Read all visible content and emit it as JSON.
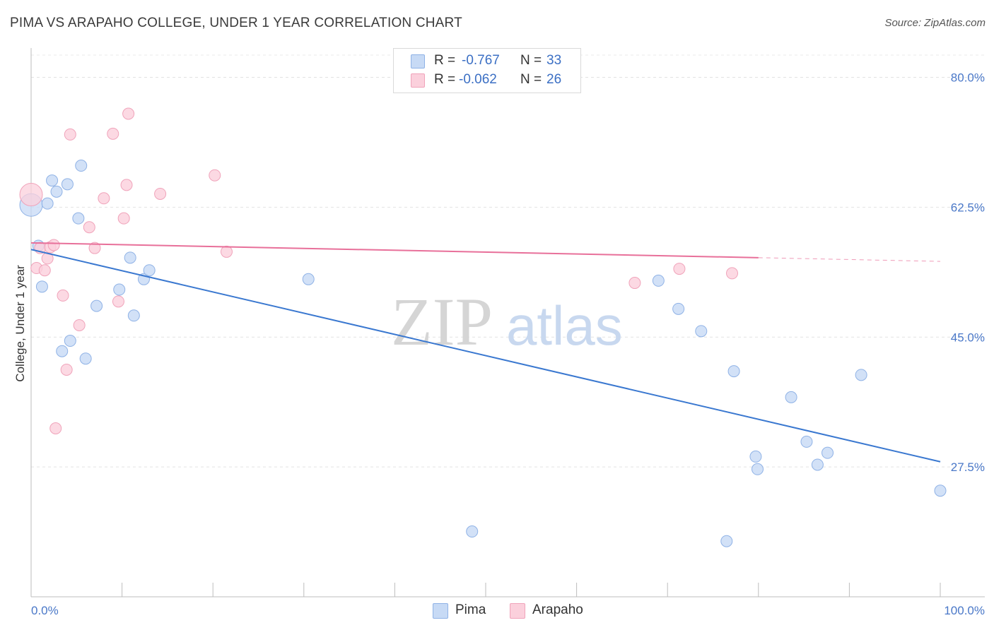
{
  "header": {
    "title": "PIMA VS ARAPAHO COLLEGE, UNDER 1 YEAR CORRELATION CHART",
    "source": "Source: ZipAtlas.com"
  },
  "legend": {
    "pima": {
      "r_label": "R =",
      "r_value": "-0.767",
      "n_label": "N =",
      "n_value": "33"
    },
    "arapaho": {
      "r_label": "R =",
      "r_value": "-0.062",
      "n_label": "N =",
      "n_value": "26"
    }
  },
  "bottom_legend": {
    "pima": "Pima",
    "arapaho": "Arapaho"
  },
  "watermark": {
    "zip": "ZIP",
    "atlas": "atlas"
  },
  "colors": {
    "pima_fill": "#c7daf5",
    "pima_stroke": "#8fb2e6",
    "pima_line": "#3a78d0",
    "arapaho_fill": "#fbd0dc",
    "arapaho_stroke": "#f0a3ba",
    "arapaho_line": "#e8709a",
    "axis_text": "#4a78c8"
  },
  "chart_data": {
    "type": "scatter",
    "title": "PIMA VS ARAPAHO COLLEGE, UNDER 1 YEAR CORRELATION CHART",
    "xlabel": "",
    "ylabel": "College, Under 1 year",
    "xlim": [
      0,
      100
    ],
    "ylim": [
      10,
      83
    ],
    "x_tick_labels": [
      "0.0%",
      "100.0%"
    ],
    "y_ticks": [
      27.5,
      45.0,
      62.5,
      80.0
    ],
    "y_tick_labels": [
      "27.5%",
      "45.0%",
      "62.5%",
      "80.0%"
    ],
    "grid": true,
    "series": [
      {
        "name": "Pima",
        "r": -0.767,
        "n": 33,
        "points": [
          {
            "x": 0.0,
            "y": 62.8,
            "big": true
          },
          {
            "x": 0.8,
            "y": 57.3
          },
          {
            "x": 1.2,
            "y": 51.8
          },
          {
            "x": 1.8,
            "y": 63.0
          },
          {
            "x": 2.3,
            "y": 66.1
          },
          {
            "x": 2.8,
            "y": 64.6
          },
          {
            "x": 3.4,
            "y": 43.1
          },
          {
            "x": 4.0,
            "y": 65.6
          },
          {
            "x": 4.3,
            "y": 44.5
          },
          {
            "x": 5.2,
            "y": 61.0
          },
          {
            "x": 5.5,
            "y": 68.1
          },
          {
            "x": 6.0,
            "y": 42.1
          },
          {
            "x": 7.2,
            "y": 49.2
          },
          {
            "x": 9.7,
            "y": 51.4
          },
          {
            "x": 10.9,
            "y": 55.7
          },
          {
            "x": 11.3,
            "y": 47.9
          },
          {
            "x": 12.4,
            "y": 52.8
          },
          {
            "x": 13.0,
            "y": 54.0
          },
          {
            "x": 30.5,
            "y": 52.8
          },
          {
            "x": 48.5,
            "y": 18.8
          },
          {
            "x": 69.0,
            "y": 52.6
          },
          {
            "x": 71.2,
            "y": 48.8
          },
          {
            "x": 73.7,
            "y": 45.8
          },
          {
            "x": 76.5,
            "y": 17.5
          },
          {
            "x": 77.3,
            "y": 40.4
          },
          {
            "x": 79.7,
            "y": 28.9
          },
          {
            "x": 79.9,
            "y": 27.2
          },
          {
            "x": 83.6,
            "y": 36.9
          },
          {
            "x": 85.3,
            "y": 30.9
          },
          {
            "x": 86.5,
            "y": 27.8
          },
          {
            "x": 87.6,
            "y": 29.4
          },
          {
            "x": 91.3,
            "y": 39.9
          },
          {
            "x": 100.0,
            "y": 24.3
          }
        ],
        "trend": {
          "x0": 0.0,
          "y0": 56.8,
          "x1": 100.0,
          "y1": 28.2,
          "dashed_from": null
        }
      },
      {
        "name": "Arapaho",
        "r": -0.062,
        "n": 26,
        "points": [
          {
            "x": 0.0,
            "y": 64.2,
            "big": true
          },
          {
            "x": 0.6,
            "y": 54.3
          },
          {
            "x": 1.0,
            "y": 57.0
          },
          {
            "x": 1.5,
            "y": 54.0
          },
          {
            "x": 1.8,
            "y": 55.6
          },
          {
            "x": 2.1,
            "y": 57.1
          },
          {
            "x": 2.5,
            "y": 57.4
          },
          {
            "x": 2.7,
            "y": 32.7
          },
          {
            "x": 3.5,
            "y": 50.6
          },
          {
            "x": 3.9,
            "y": 40.6
          },
          {
            "x": 4.3,
            "y": 72.3
          },
          {
            "x": 5.3,
            "y": 46.6
          },
          {
            "x": 6.4,
            "y": 59.8
          },
          {
            "x": 7.0,
            "y": 57.0
          },
          {
            "x": 8.0,
            "y": 63.7
          },
          {
            "x": 9.0,
            "y": 72.4
          },
          {
            "x": 9.6,
            "y": 49.8
          },
          {
            "x": 10.2,
            "y": 61.0
          },
          {
            "x": 10.5,
            "y": 65.5
          },
          {
            "x": 10.7,
            "y": 75.1
          },
          {
            "x": 14.2,
            "y": 64.3
          },
          {
            "x": 20.2,
            "y": 66.8
          },
          {
            "x": 21.5,
            "y": 56.5
          },
          {
            "x": 66.4,
            "y": 52.3
          },
          {
            "x": 71.3,
            "y": 54.2
          },
          {
            "x": 77.1,
            "y": 53.6
          }
        ],
        "trend": {
          "x0": 0.0,
          "y0": 57.7,
          "x1": 100.0,
          "y1": 55.2,
          "dashed_from": 80.0
        }
      }
    ]
  }
}
